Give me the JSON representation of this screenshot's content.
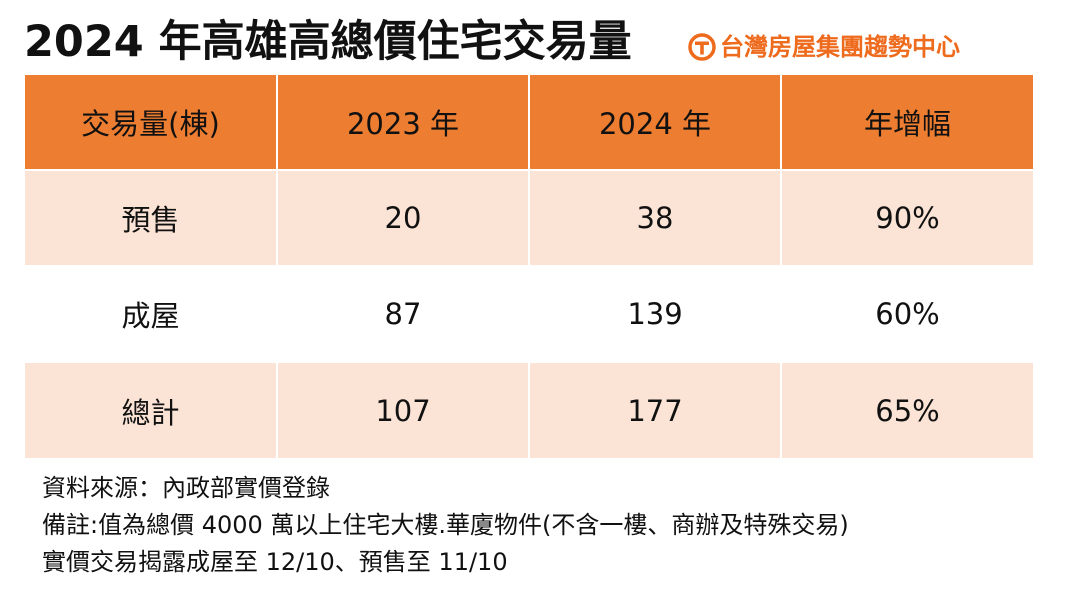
{
  "title": "2024 年高雄高總價住宅交易量",
  "brand": {
    "name": "台灣房屋集團趨勢中心",
    "logo_icon": "taiwan-realty-logo-icon",
    "color": "#ee6a1c"
  },
  "colors": {
    "header_bg": "#ed7d31",
    "row_alt_bg": "#fbe4d5",
    "row_bg": "#ffffff"
  },
  "table": {
    "headers": [
      "交易量(棟)",
      "2023 年",
      "2024 年",
      "年增幅"
    ],
    "rows": [
      {
        "label": "預售",
        "y2023": "20",
        "y2024": "38",
        "growth": "90%"
      },
      {
        "label": "成屋",
        "y2023": "87",
        "y2024": "139",
        "growth": "60%"
      },
      {
        "label": "總計",
        "y2023": "107",
        "y2024": "177",
        "growth": "65%"
      }
    ]
  },
  "notes": {
    "source": "資料來源：內政部實價登錄",
    "remark": "備註:值為總價 4000 萬以上住宅大樓.華廈物件(不含一樓、商辦及特殊交易)",
    "disclosure": "實價交易揭露成屋至 12/10、預售至 11/10"
  }
}
